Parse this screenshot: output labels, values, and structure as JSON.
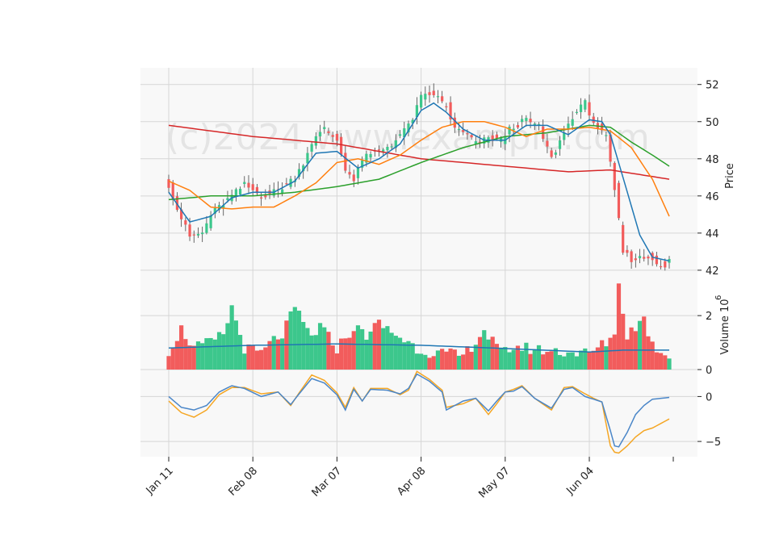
{
  "watermark": "(c)2024 www.example.com",
  "colors": {
    "up": "#3cc78c",
    "down": "#f25c5c",
    "panel_bg": "#f8f8f8",
    "grid": "#d6d6d6",
    "sma_fast": "#1f77b4",
    "sma_mid": "#ff7f0e",
    "sma_long": "#2ca02c",
    "sma_200": "#d62728",
    "vol_avg": "#1f77b4",
    "osc_1": "#4a86c8",
    "osc_2": "#f5a623"
  },
  "chart_data": [
    {
      "type": "candlestick",
      "ylabel": "Price",
      "ylim": [
        41.3,
        52.9
      ],
      "yticks": [
        42,
        44,
        46,
        48,
        50,
        52
      ],
      "x_tick_labels": [
        "Jan 11",
        "Feb 08",
        "Mar 07",
        "Apr 08",
        "May 07",
        "Jun 04"
      ],
      "x_tick_index": [
        0,
        20,
        40,
        60,
        80,
        100
      ],
      "n_sessions": 120,
      "anchors": [
        [
          0,
          46.6
        ],
        [
          2,
          45.3
        ],
        [
          5,
          43.8
        ],
        [
          8,
          44.0
        ],
        [
          10,
          45.0
        ],
        [
          15,
          46.0
        ],
        [
          18,
          46.6
        ],
        [
          22,
          46.0
        ],
        [
          26,
          46.3
        ],
        [
          30,
          47.0
        ],
        [
          32,
          47.8
        ],
        [
          34,
          48.9
        ],
        [
          37,
          49.6
        ],
        [
          40,
          49.0
        ],
        [
          42,
          47.5
        ],
        [
          44,
          46.8
        ],
        [
          46,
          48.0
        ],
        [
          50,
          48.4
        ],
        [
          53,
          48.8
        ],
        [
          56,
          49.5
        ],
        [
          58,
          50.2
        ],
        [
          60,
          51.3
        ],
        [
          63,
          51.5
        ],
        [
          66,
          50.8
        ],
        [
          68,
          49.6
        ],
        [
          71,
          49.3
        ],
        [
          73,
          48.8
        ],
        [
          76,
          49.1
        ],
        [
          79,
          49.0
        ],
        [
          81,
          49.6
        ],
        [
          85,
          50.1
        ],
        [
          88,
          49.7
        ],
        [
          91,
          48.0
        ],
        [
          94,
          49.4
        ],
        [
          96,
          50.3
        ],
        [
          99,
          51.0
        ],
        [
          101,
          50.0
        ],
        [
          104,
          49.1
        ],
        [
          106,
          46.3
        ],
        [
          108,
          43.0
        ],
        [
          110,
          42.6
        ],
        [
          114,
          42.7
        ],
        [
          118,
          42.2
        ],
        [
          119,
          42.5
        ]
      ],
      "sma_fast_anchors": [
        [
          0,
          46.2
        ],
        [
          5,
          44.6
        ],
        [
          10,
          44.9
        ],
        [
          15,
          45.9
        ],
        [
          20,
          46.2
        ],
        [
          25,
          46.2
        ],
        [
          30,
          46.8
        ],
        [
          35,
          48.3
        ],
        [
          40,
          48.4
        ],
        [
          45,
          47.5
        ],
        [
          50,
          48.0
        ],
        [
          55,
          48.8
        ],
        [
          60,
          50.6
        ],
        [
          63,
          51.0
        ],
        [
          66,
          50.5
        ],
        [
          70,
          49.6
        ],
        [
          75,
          49.0
        ],
        [
          80,
          49.0
        ],
        [
          85,
          49.8
        ],
        [
          90,
          49.8
        ],
        [
          95,
          49.3
        ],
        [
          100,
          50.1
        ],
        [
          103,
          50.0
        ],
        [
          105,
          49.3
        ],
        [
          108,
          47.0
        ],
        [
          112,
          43.9
        ],
        [
          115,
          42.7
        ],
        [
          119,
          42.5
        ]
      ],
      "sma_mid_anchors": [
        [
          0,
          46.8
        ],
        [
          5,
          46.3
        ],
        [
          10,
          45.4
        ],
        [
          15,
          45.3
        ],
        [
          20,
          45.4
        ],
        [
          25,
          45.4
        ],
        [
          30,
          46.0
        ],
        [
          35,
          46.7
        ],
        [
          40,
          47.8
        ],
        [
          45,
          48.0
        ],
        [
          50,
          47.7
        ],
        [
          55,
          48.2
        ],
        [
          60,
          49.0
        ],
        [
          65,
          49.7
        ],
        [
          70,
          50.0
        ],
        [
          75,
          50.0
        ],
        [
          80,
          49.7
        ],
        [
          85,
          49.2
        ],
        [
          90,
          49.6
        ],
        [
          95,
          49.6
        ],
        [
          100,
          49.7
        ],
        [
          105,
          49.5
        ],
        [
          110,
          48.6
        ],
        [
          115,
          46.9
        ],
        [
          119,
          44.9
        ]
      ],
      "sma_long_anchors": [
        [
          0,
          45.8
        ],
        [
          10,
          46.0
        ],
        [
          20,
          46.0
        ],
        [
          30,
          46.2
        ],
        [
          40,
          46.5
        ],
        [
          50,
          46.9
        ],
        [
          60,
          47.8
        ],
        [
          65,
          48.2
        ],
        [
          70,
          48.6
        ],
        [
          80,
          49.2
        ],
        [
          90,
          49.4
        ],
        [
          100,
          49.8
        ],
        [
          105,
          49.7
        ],
        [
          110,
          48.9
        ],
        [
          115,
          48.2
        ],
        [
          119,
          47.6
        ]
      ],
      "sma_200_anchors": [
        [
          0,
          49.8
        ],
        [
          20,
          49.2
        ],
        [
          40,
          48.8
        ],
        [
          60,
          48.0
        ],
        [
          80,
          47.6
        ],
        [
          95,
          47.3
        ],
        [
          105,
          47.4
        ],
        [
          119,
          46.9
        ]
      ]
    },
    {
      "type": "bar",
      "ylabel": "Volume  10",
      "ylabel_exponent": "6",
      "ylim": [
        0,
        3.2
      ],
      "yticks": [
        0,
        2
      ],
      "volume_anchors": [
        [
          0,
          0.7
        ],
        [
          3,
          1.5
        ],
        [
          6,
          0.8
        ],
        [
          10,
          1.0
        ],
        [
          13,
          1.3
        ],
        [
          15,
          2.3
        ],
        [
          18,
          0.8
        ],
        [
          22,
          0.6
        ],
        [
          25,
          1.1
        ],
        [
          27,
          1.3
        ],
        [
          30,
          2.25
        ],
        [
          34,
          1.2
        ],
        [
          36,
          1.6
        ],
        [
          40,
          0.8
        ],
        [
          44,
          1.55
        ],
        [
          47,
          1.3
        ],
        [
          50,
          1.7
        ],
        [
          55,
          1.2
        ],
        [
          60,
          0.7
        ],
        [
          70,
          0.5
        ],
        [
          75,
          1.45
        ],
        [
          79,
          0.6
        ],
        [
          82,
          0.85
        ],
        [
          90,
          0.7
        ],
        [
          100,
          0.6
        ],
        [
          104,
          1.0
        ],
        [
          106,
          1.4
        ],
        [
          107,
          3.1
        ],
        [
          109,
          1.3
        ],
        [
          113,
          1.9
        ],
        [
          115,
          0.9
        ],
        [
          119,
          0.5
        ]
      ],
      "vol_avg_anchors": [
        [
          0,
          0.8
        ],
        [
          20,
          0.9
        ],
        [
          40,
          0.95
        ],
        [
          60,
          0.9
        ],
        [
          80,
          0.78
        ],
        [
          100,
          0.65
        ],
        [
          108,
          0.72
        ],
        [
          119,
          0.72
        ]
      ]
    },
    {
      "type": "line",
      "ylim": [
        -6.7,
        3.0
      ],
      "yticks": [
        -5,
        0
      ],
      "osc1_anchors": [
        [
          0,
          0
        ],
        [
          3,
          -1.2
        ],
        [
          6,
          -1.5
        ],
        [
          9,
          -1.0
        ],
        [
          12,
          0.5
        ],
        [
          15,
          1.2
        ],
        [
          18,
          0.9
        ],
        [
          22,
          0.0
        ],
        [
          26,
          0.5
        ],
        [
          29,
          -0.9
        ],
        [
          31,
          0.3
        ],
        [
          34,
          2.0
        ],
        [
          37,
          1.5
        ],
        [
          40,
          0.2
        ],
        [
          42,
          -1.5
        ],
        [
          44,
          0.8
        ],
        [
          46,
          -0.5
        ],
        [
          48,
          0.8
        ],
        [
          52,
          0.7
        ],
        [
          55,
          0.3
        ],
        [
          57,
          0.9
        ],
        [
          59,
          2.5
        ],
        [
          62,
          1.7
        ],
        [
          65,
          0.5
        ],
        [
          66,
          -1.5
        ],
        [
          70,
          -0.5
        ],
        [
          73,
          -0.2
        ],
        [
          76,
          -1.6
        ],
        [
          78,
          -0.5
        ],
        [
          80,
          0.5
        ],
        [
          82,
          0.6
        ],
        [
          84,
          1.1
        ],
        [
          87,
          -0.2
        ],
        [
          91,
          -1.3
        ],
        [
          94,
          0.8
        ],
        [
          96,
          1.0
        ],
        [
          99,
          0.0
        ],
        [
          101,
          -0.3
        ],
        [
          103,
          -0.6
        ],
        [
          105,
          -3.8
        ],
        [
          106,
          -5.5
        ],
        [
          107,
          -5.6
        ],
        [
          109,
          -4.0
        ],
        [
          111,
          -2.0
        ],
        [
          113,
          -1.0
        ],
        [
          115,
          -0.3
        ],
        [
          119,
          -0.1
        ]
      ],
      "osc2_anchors": [
        [
          0,
          -0.5
        ],
        [
          3,
          -1.8
        ],
        [
          6,
          -2.3
        ],
        [
          9,
          -1.5
        ],
        [
          12,
          0.2
        ],
        [
          15,
          1.0
        ],
        [
          18,
          1.0
        ],
        [
          22,
          0.3
        ],
        [
          26,
          0.5
        ],
        [
          29,
          -1.0
        ],
        [
          31,
          0.4
        ],
        [
          34,
          2.4
        ],
        [
          37,
          1.8
        ],
        [
          40,
          0.4
        ],
        [
          42,
          -1.2
        ],
        [
          44,
          1.0
        ],
        [
          46,
          -0.5
        ],
        [
          48,
          0.9
        ],
        [
          52,
          0.9
        ],
        [
          55,
          0.2
        ],
        [
          57,
          0.7
        ],
        [
          59,
          2.8
        ],
        [
          62,
          1.9
        ],
        [
          65,
          0.7
        ],
        [
          66,
          -1.2
        ],
        [
          70,
          -0.8
        ],
        [
          73,
          -0.2
        ],
        [
          76,
          -2.0
        ],
        [
          78,
          -0.8
        ],
        [
          80,
          0.5
        ],
        [
          82,
          0.8
        ],
        [
          84,
          1.2
        ],
        [
          87,
          -0.2
        ],
        [
          91,
          -1.5
        ],
        [
          94,
          1.0
        ],
        [
          96,
          1.1
        ],
        [
          99,
          0.3
        ],
        [
          101,
          -0.2
        ],
        [
          103,
          -0.6
        ],
        [
          105,
          -5.5
        ],
        [
          106,
          -6.2
        ],
        [
          107,
          -6.3
        ],
        [
          109,
          -5.5
        ],
        [
          111,
          -4.5
        ],
        [
          113,
          -3.8
        ],
        [
          115,
          -3.5
        ],
        [
          119,
          -2.5
        ]
      ]
    }
  ]
}
